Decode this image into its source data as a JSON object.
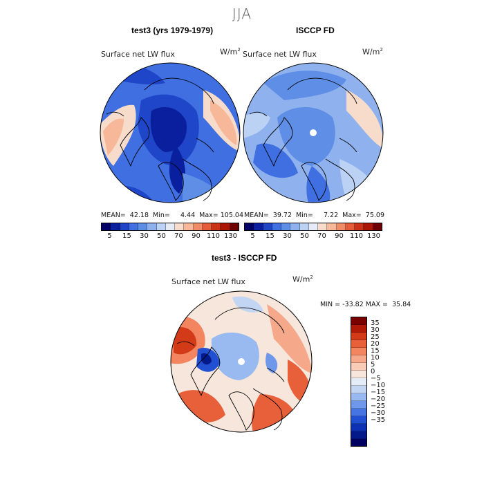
{
  "season": "JJA",
  "panels": {
    "model": {
      "title": "test3 (yrs 1979-1979)",
      "variable": "Surface net LW flux",
      "unit_base": "W/m",
      "unit_exp": "2",
      "stats": "MEAN=  42.18  Min=     4.44  Max= 105.04",
      "mean": 42.18,
      "min": 4.44,
      "max": 105.04
    },
    "obs": {
      "title": "ISCCP FD",
      "variable": "Surface net LW flux",
      "unit_base": "W/m",
      "unit_exp": "2",
      "stats": "MEAN=  39.72  Min=     7.22  Max=  75.09",
      "mean": 39.72,
      "min": 7.22,
      "max": 75.09
    },
    "diff": {
      "title": "test3 - ISCCP FD",
      "variable": "Surface net LW flux",
      "unit_base": "W/m",
      "unit_exp": "2",
      "stats": "MIN = -33.82 MAX =  35.84",
      "min": -33.82,
      "max": 35.84
    }
  },
  "abs_colorbar": {
    "colors": [
      "#000066",
      "#0a1f9e",
      "#1f45c9",
      "#3f6fe0",
      "#5f8ee6",
      "#8fb2ef",
      "#bcd2f5",
      "#e6ecf6",
      "#f8dccb",
      "#f7b89a",
      "#f08d67",
      "#e55c3b",
      "#cc3218",
      "#aa1506",
      "#6e0000"
    ],
    "tick_labels": [
      "5",
      "15",
      "30",
      "50",
      "70",
      "90",
      "110",
      "130"
    ]
  },
  "diff_colorbar": {
    "colors_top_to_bottom": [
      "#7a0000",
      "#b01a06",
      "#d23a18",
      "#e8603a",
      "#f38660",
      "#f6a98a",
      "#f8ccb6",
      "#f6e6dc",
      "#e3ecf7",
      "#c2d6f3",
      "#98baf0",
      "#6f98ea",
      "#4674e2",
      "#2150d2",
      "#0e30b2",
      "#041a8a",
      "#000060"
    ],
    "tick_labels": [
      "35",
      "30",
      "25",
      "20",
      "15",
      "10",
      "5",
      "0",
      "−5",
      "−10",
      "−15",
      "−20",
      "−25",
      "−30",
      "−35"
    ]
  }
}
